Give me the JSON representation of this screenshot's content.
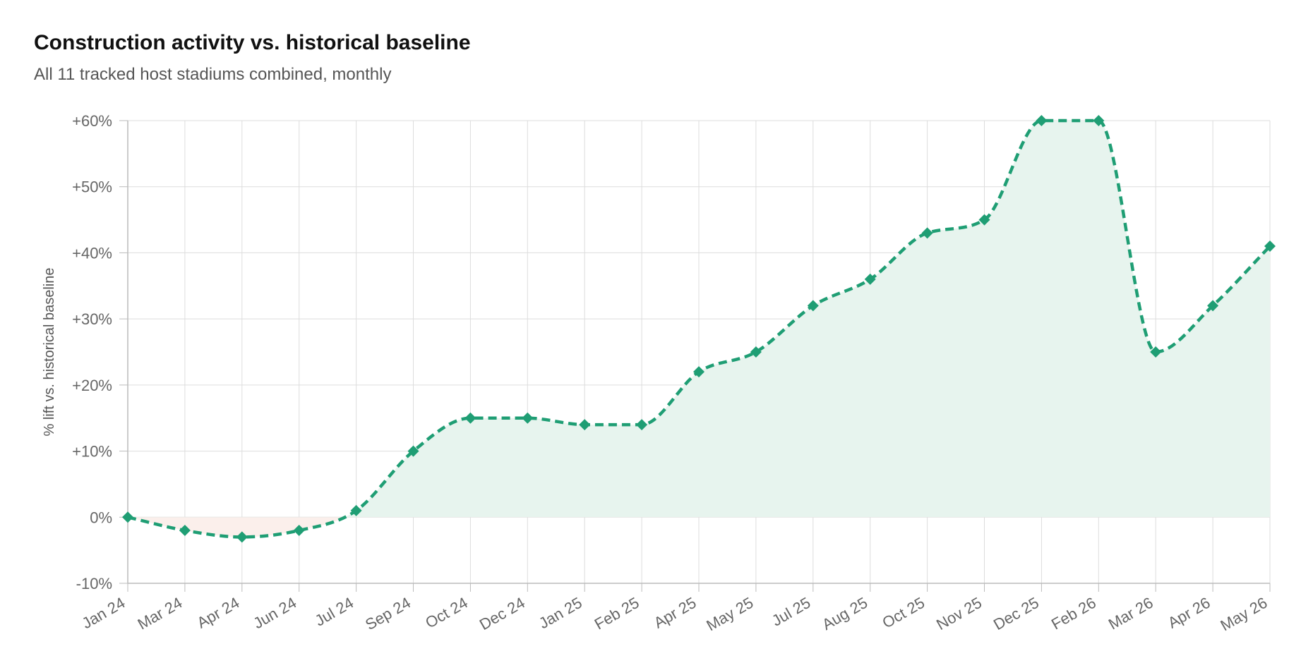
{
  "chart_data": {
    "type": "area",
    "title": "Construction activity vs. historical baseline",
    "subtitle": "All 11 tracked host stadiums combined, monthly",
    "ylabel": "% lift vs. historical baseline",
    "xlabel": "",
    "ylim": [
      -10,
      60
    ],
    "y_ticks": [
      60,
      50,
      40,
      30,
      20,
      10,
      0,
      -10
    ],
    "y_tick_labels": [
      "+60%",
      "+50%",
      "+40%",
      "+30%",
      "+20%",
      "+10%",
      "0%",
      "-10%"
    ],
    "categories": [
      "Jan 24",
      "Mar 24",
      "Apr 24",
      "Jun 24",
      "Jul 24",
      "Sep 24",
      "Oct 24",
      "Dec 24",
      "Jan 25",
      "Feb 25",
      "Apr 25",
      "May 25",
      "Jul 25",
      "Aug 25",
      "Oct 25",
      "Nov 25",
      "Dec 25",
      "Feb 26",
      "Mar 26",
      "Apr 26",
      "May 26"
    ],
    "series": [
      {
        "values": [
          0,
          -2,
          -3,
          -2,
          1,
          10,
          15,
          15,
          14,
          14,
          22,
          25,
          32,
          36,
          43,
          45,
          60,
          60,
          25,
          32,
          41
        ]
      }
    ],
    "grid": true,
    "legend": "none",
    "colors": {
      "line": "#1f9e74",
      "fill_positive": "#e7f4ee",
      "fill_negative": "#fbefeb",
      "grid": "#dddddd",
      "axis": "#bbbbbb"
    }
  }
}
